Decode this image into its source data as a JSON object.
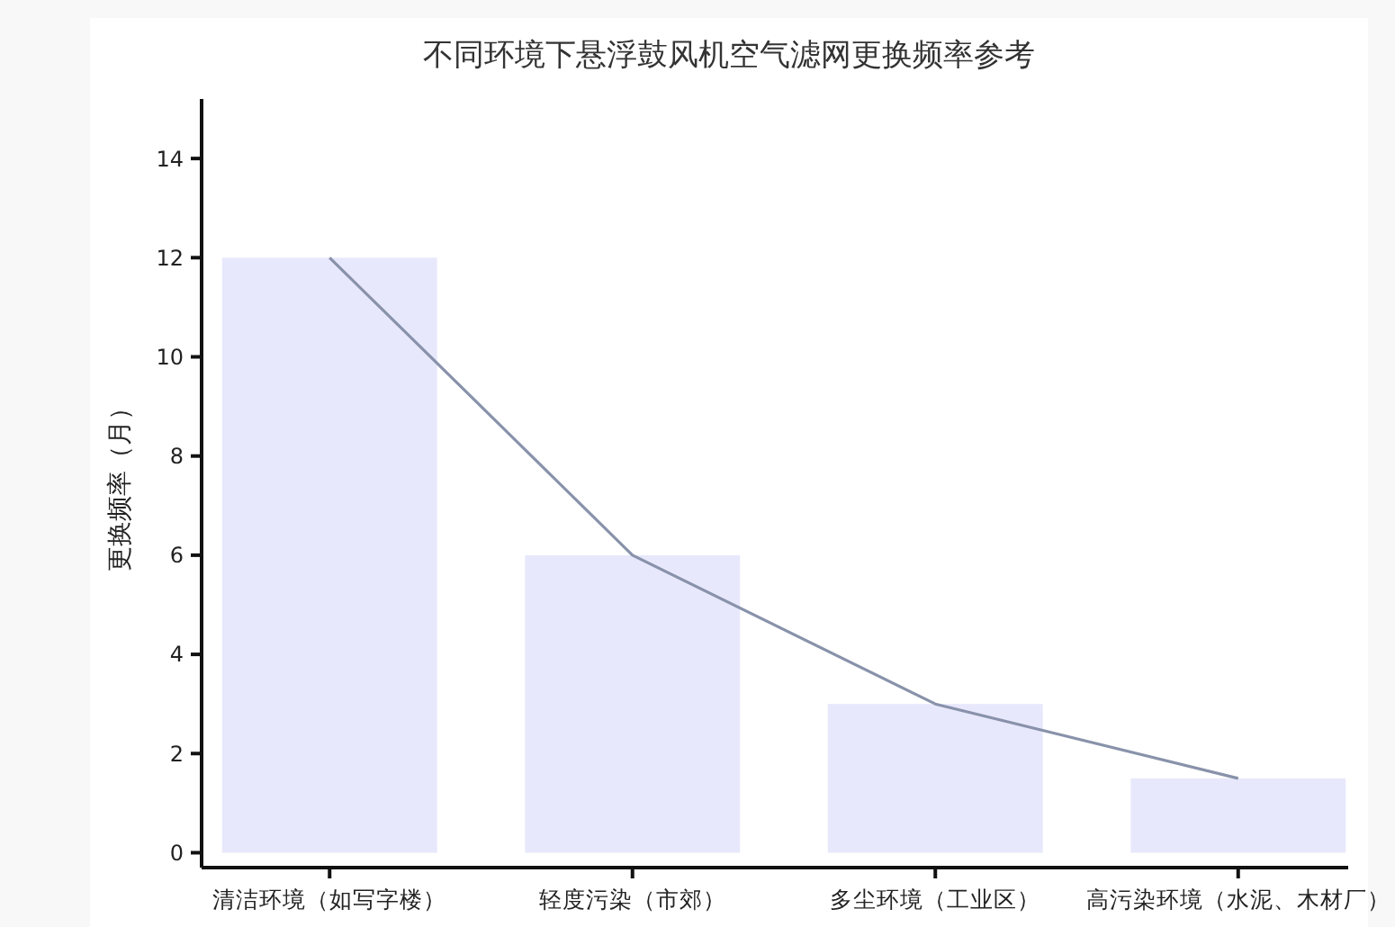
{
  "chart_data": {
    "type": "bar",
    "title": "不同环境下悬浮鼓风机空气滤网更换频率参考",
    "ylabel": "更换频率（月）",
    "categories": [
      "清洁环境（如写字楼）",
      "轻度污染（市郊）",
      "多尘环境（工业区）",
      "高污染环境（水泥、木材厂）"
    ],
    "series": [
      {
        "color": "#e8e8fc",
        "values": [
          12,
          6,
          3,
          1.5
        ]
      },
      {
        "type": "line",
        "color": "#8892aa",
        "values": [
          12,
          6,
          3,
          1.5
        ]
      }
    ],
    "ylim": [
      -0.3,
      15.2
    ],
    "yticks": [
      0,
      2,
      4,
      6,
      8,
      10,
      12,
      14
    ],
    "marker": "none",
    "line_style": "solid"
  }
}
